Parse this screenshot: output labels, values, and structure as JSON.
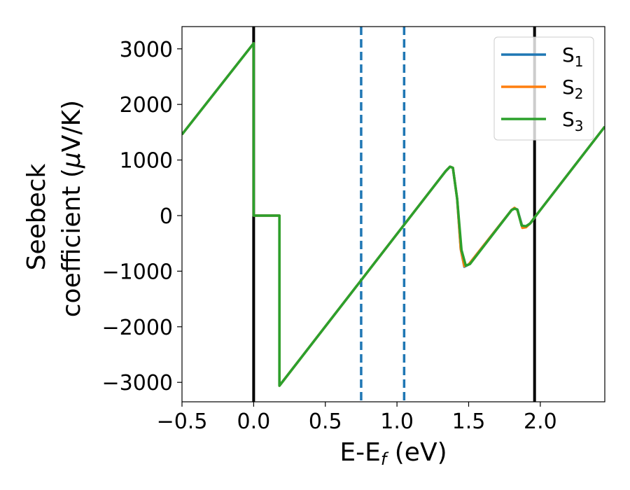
{
  "chart_data": {
    "type": "line",
    "xlabel": "E-E",
    "xlabel_sub": "f",
    "xlabel_unit": " (eV)",
    "ylabel_line1": "Seebeck",
    "ylabel_line2_pre": "coefficient  (",
    "ylabel_mu": "μ",
    "ylabel_line2_post": "V/K)",
    "xlim": [
      -0.5,
      2.45
    ],
    "ylim": [
      -3350,
      3400
    ],
    "xticks": [
      -0.5,
      0.0,
      0.5,
      1.0,
      1.5,
      2.0
    ],
    "xtick_labels": [
      "−0.5",
      "0.0",
      "0.5",
      "1.0",
      "1.5",
      "2.0"
    ],
    "yticks": [
      3000,
      2000,
      1000,
      0,
      -1000,
      -2000,
      -3000
    ],
    "ytick_labels": [
      "3000",
      "2000",
      "1000",
      "0",
      "−1000",
      "−2000",
      "−3000"
    ],
    "grid": false,
    "legend_position": "top-right",
    "vlines": [
      {
        "x": 0.0,
        "style": "solid",
        "color": "#000000"
      },
      {
        "x": 1.96,
        "style": "solid",
        "color": "#000000"
      },
      {
        "x": 0.75,
        "style": "dashed",
        "color": "#1f77b4"
      },
      {
        "x": 1.05,
        "style": "dashed",
        "color": "#1f77b4"
      }
    ],
    "series": [
      {
        "name": "S",
        "sub": "1",
        "color": "#1f77b4",
        "points": [
          [
            -0.5,
            1460
          ],
          [
            0.0,
            3100
          ],
          [
            0.0,
            0
          ],
          [
            0.18,
            0
          ],
          [
            0.18,
            -3060
          ],
          [
            1.28,
            600
          ],
          [
            1.34,
            800
          ],
          [
            1.37,
            880
          ],
          [
            1.39,
            860
          ],
          [
            1.42,
            300
          ],
          [
            1.445,
            -600
          ],
          [
            1.47,
            -920
          ],
          [
            1.5,
            -880
          ],
          [
            1.8,
            100
          ],
          [
            1.82,
            130
          ],
          [
            1.84,
            110
          ],
          [
            1.875,
            -200
          ],
          [
            1.9,
            -200
          ],
          [
            1.93,
            -140
          ],
          [
            1.97,
            0
          ],
          [
            2.45,
            1600
          ]
        ]
      },
      {
        "name": "S",
        "sub": "2",
        "color": "#ff7f0e",
        "points": [
          [
            -0.5,
            1460
          ],
          [
            0.0,
            3100
          ],
          [
            0.0,
            0
          ],
          [
            0.18,
            0
          ],
          [
            0.18,
            -3060
          ],
          [
            1.28,
            600
          ],
          [
            1.34,
            800
          ],
          [
            1.37,
            880
          ],
          [
            1.39,
            860
          ],
          [
            1.42,
            300
          ],
          [
            1.445,
            -600
          ],
          [
            1.47,
            -910
          ],
          [
            1.5,
            -880
          ],
          [
            1.8,
            100
          ],
          [
            1.82,
            140
          ],
          [
            1.84,
            100
          ],
          [
            1.875,
            -220
          ],
          [
            1.9,
            -210
          ],
          [
            1.93,
            -140
          ],
          [
            1.97,
            0
          ],
          [
            2.45,
            1600
          ]
        ]
      },
      {
        "name": "S",
        "sub": "3",
        "color": "#2ca02c",
        "points": [
          [
            -0.5,
            1460
          ],
          [
            0.0,
            3100
          ],
          [
            0.0,
            0
          ],
          [
            0.18,
            0
          ],
          [
            0.18,
            -3060
          ],
          [
            1.28,
            600
          ],
          [
            1.34,
            800
          ],
          [
            1.37,
            880
          ],
          [
            1.39,
            860
          ],
          [
            1.42,
            300
          ],
          [
            1.45,
            -620
          ],
          [
            1.48,
            -900
          ],
          [
            1.51,
            -870
          ],
          [
            1.8,
            100
          ],
          [
            1.82,
            125
          ],
          [
            1.84,
            110
          ],
          [
            1.87,
            -180
          ],
          [
            1.9,
            -190
          ],
          [
            1.93,
            -140
          ],
          [
            1.97,
            0
          ],
          [
            2.45,
            1600
          ]
        ]
      }
    ]
  }
}
